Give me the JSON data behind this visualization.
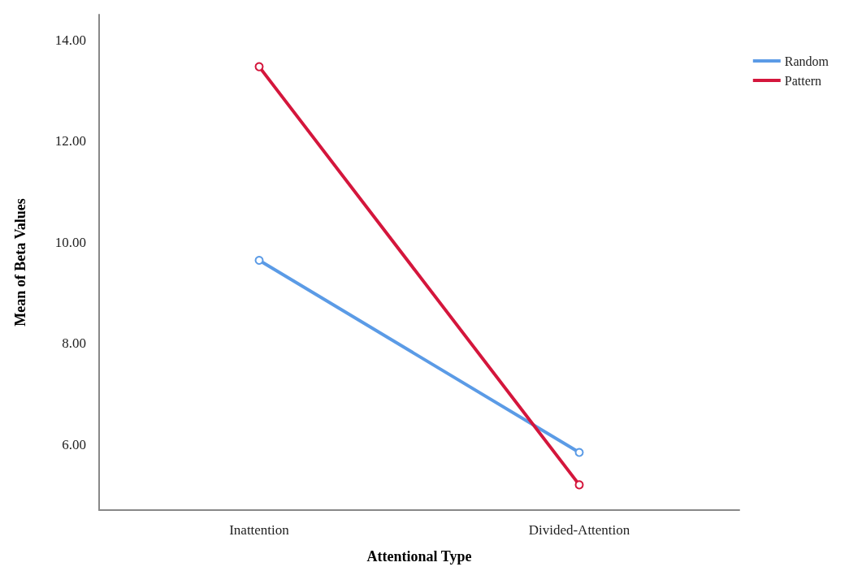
{
  "chart_data": {
    "type": "line",
    "xlabel": "Attentional Type",
    "ylabel": "Mean of Beta Values",
    "categories": [
      "Inattention",
      "Divided-Attention"
    ],
    "series": [
      {
        "name": "Random",
        "color": "#5b9be6",
        "values": [
          9.64,
          5.84
        ]
      },
      {
        "name": "Pattern",
        "color": "#d4163c",
        "values": [
          13.47,
          5.2
        ]
      }
    ],
    "ylim": [
      4.7,
      14.5
    ],
    "yticks": [
      {
        "value": 6,
        "label": "6.00"
      },
      {
        "value": 8,
        "label": "8.00"
      },
      {
        "value": 10,
        "label": "10.00"
      },
      {
        "value": 12,
        "label": "12.00"
      },
      {
        "value": 14,
        "label": "14.00"
      }
    ],
    "grid": false,
    "legend": "top right",
    "marker": "circle",
    "line_style": "solid"
  }
}
